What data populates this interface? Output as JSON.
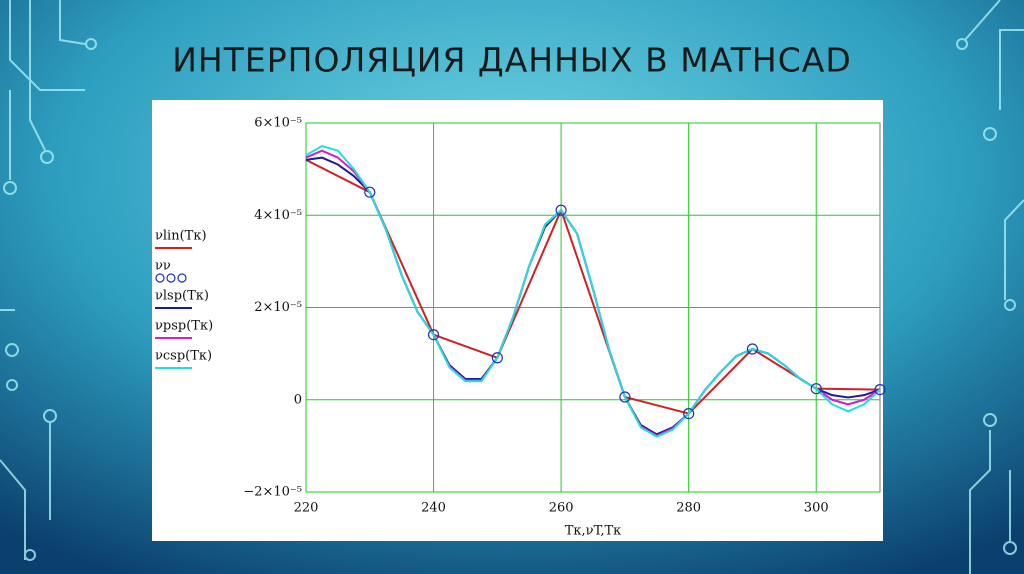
{
  "chart_data": {
    "type": "line",
    "title": "ИНТЕРПОЛЯЦИЯ ДАННЫХ В MATHCAD",
    "xlabel": "Tк,νT,Tк",
    "xlim": [
      220,
      310
    ],
    "ylim": [
      -2e-05,
      6e-05
    ],
    "xticks": [
      220,
      240,
      260,
      280,
      300
    ],
    "yticks": [
      {
        "value": -2e-05,
        "label": "−2×10⁻⁵"
      },
      0,
      {
        "value": 2e-05,
        "label": "2×10⁻⁵"
      },
      {
        "value": 4e-05,
        "label": "4×10⁻⁵"
      },
      {
        "value": 6e-05,
        "label": "6×10⁻⁵"
      }
    ],
    "grid": true,
    "grid_color": "#22cc22",
    "series": [
      {
        "name": "νlin(Tк)",
        "color": "#d42020",
        "marker": "none",
        "x": [
          220,
          230,
          240,
          250,
          260,
          270,
          280,
          290,
          300,
          310
        ],
        "values": [
          5.2e-05,
          4.5e-05,
          1.41e-05,
          9.1e-06,
          4.11e-05,
          6e-07,
          -3e-06,
          1.1e-05,
          2.4e-06,
          2.2e-06
        ]
      },
      {
        "name": "νν",
        "color": "#2030c0",
        "marker": "circle",
        "x": [
          230,
          240,
          250,
          260,
          270,
          280,
          290,
          300,
          310
        ],
        "values": [
          4.5e-05,
          1.41e-05,
          9.1e-06,
          4.11e-05,
          6e-07,
          -3e-06,
          1.1e-05,
          2.4e-06,
          2.2e-06
        ]
      },
      {
        "name": "νlsp(Tк)",
        "color": "#1a1a9a",
        "marker": "none",
        "x": [
          220,
          222.5,
          225,
          227.5,
          230,
          232.5,
          235,
          237.5,
          240,
          242.5,
          245,
          247.5,
          250,
          252.5,
          255,
          257.5,
          260,
          262.5,
          265,
          267.5,
          270,
          272.5,
          275,
          277.5,
          280,
          282.5,
          285,
          287.5,
          290,
          292.5,
          295,
          297.5,
          300,
          302.5,
          305,
          307.5,
          310
        ],
        "values": [
          5.2e-05,
          5.25e-05,
          5.1e-05,
          4.85e-05,
          4.5e-05,
          3.7e-05,
          2.7e-05,
          1.9e-05,
          1.41e-05,
          7.5e-06,
          4.5e-06,
          4.5e-06,
          9.1e-06,
          1.8e-05,
          2.9e-05,
          3.75e-05,
          4.11e-05,
          3.6e-05,
          2.4e-05,
          1.1e-05,
          6e-07,
          -5.5e-06,
          -7.5e-06,
          -6e-06,
          -3e-06,
          2e-06,
          6e-06,
          9.5e-06,
          1.1e-05,
          1e-05,
          7.5e-06,
          4.5e-06,
          2.4e-06,
          1e-06,
          5e-07,
          1e-06,
          2.2e-06
        ]
      },
      {
        "name": "νpsp(Tк)",
        "color": "#d020d0",
        "marker": "none",
        "x": [
          220,
          222.5,
          225,
          227.5,
          230,
          232.5,
          235,
          237.5,
          240,
          242.5,
          245,
          247.5,
          250,
          252.5,
          255,
          257.5,
          260,
          262.5,
          265,
          267.5,
          270,
          272.5,
          275,
          277.5,
          280,
          282.5,
          285,
          287.5,
          290,
          292.5,
          295,
          297.5,
          300,
          302.5,
          305,
          307.5,
          310
        ],
        "values": [
          5.25e-05,
          5.4e-05,
          5.25e-05,
          4.95e-05,
          4.5e-05,
          3.7e-05,
          2.7e-05,
          1.9e-05,
          1.41e-05,
          7.2e-06,
          4.2e-06,
          4.2e-06,
          9.1e-06,
          1.8e-05,
          2.9e-05,
          3.8e-05,
          4.11e-05,
          3.6e-05,
          2.4e-05,
          1.1e-05,
          6e-07,
          -5.8e-06,
          -7.8e-06,
          -6.2e-06,
          -3e-06,
          2e-06,
          6e-06,
          9.5e-06,
          1.1e-05,
          1e-05,
          7.5e-06,
          4.5e-06,
          2.4e-06,
          0.0,
          -1e-06,
          0.0,
          2.2e-06
        ]
      },
      {
        "name": "νcsp(Tк)",
        "color": "#22dede",
        "marker": "none",
        "x": [
          220,
          222.5,
          225,
          227.5,
          230,
          232.5,
          235,
          237.5,
          240,
          242.5,
          245,
          247.5,
          250,
          252.5,
          255,
          257.5,
          260,
          262.5,
          265,
          267.5,
          270,
          272.5,
          275,
          277.5,
          280,
          282.5,
          285,
          287.5,
          290,
          292.5,
          295,
          297.5,
          300,
          302.5,
          305,
          307.5,
          310
        ],
        "values": [
          5.3e-05,
          5.5e-05,
          5.4e-05,
          5e-05,
          4.5e-05,
          3.7e-05,
          2.7e-05,
          1.9e-05,
          1.41e-05,
          7e-06,
          4e-06,
          4e-06,
          9.1e-06,
          1.8e-05,
          2.9e-05,
          3.8e-05,
          4.11e-05,
          3.6e-05,
          2.4e-05,
          1.1e-05,
          6e-07,
          -6e-06,
          -8e-06,
          -6.5e-06,
          -3e-06,
          2e-06,
          6e-06,
          9.5e-06,
          1.1e-05,
          1e-05,
          7.5e-06,
          4.5e-06,
          2.4e-06,
          -1e-06,
          -2.5e-06,
          -1e-06,
          2.2e-06
        ]
      }
    ]
  }
}
